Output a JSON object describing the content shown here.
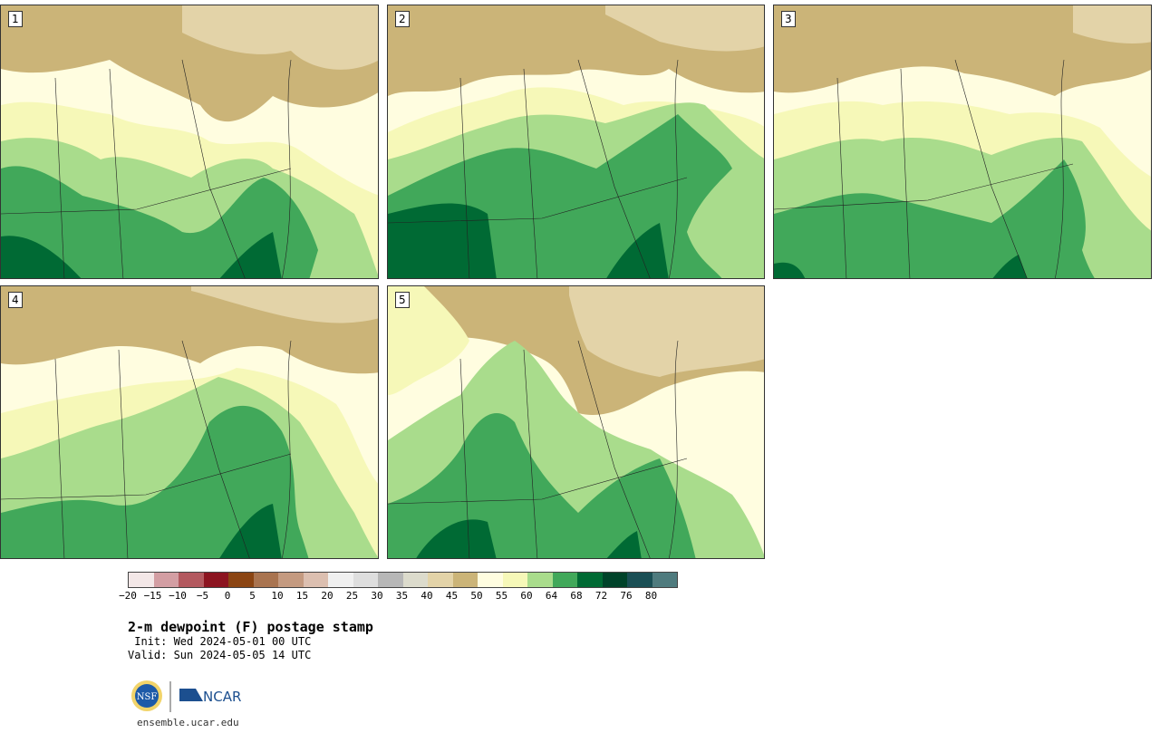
{
  "panels": [
    {
      "label": "1"
    },
    {
      "label": "2"
    },
    {
      "label": "3"
    },
    {
      "label": "4"
    },
    {
      "label": "5"
    }
  ],
  "colorbar": {
    "colors": [
      "#f3e7e7",
      "#d39ea3",
      "#b3595f",
      "#8c1420",
      "#8b4513",
      "#a97450",
      "#c49a80",
      "#dcbfb0",
      "#f0f0f0",
      "#dedede",
      "#b7b7b7",
      "#dcdbcc",
      "#e3d3a8",
      "#cbb478",
      "#fffde0",
      "#f6f8b8",
      "#a9dc8c",
      "#41a85a",
      "#006a34",
      "#00432a",
      "#1a4f55",
      "#4f7b7e"
    ],
    "tick_labels": [
      "−20",
      "−15",
      "−10",
      "−5",
      "0",
      "5",
      "10",
      "15",
      "20",
      "25",
      "30",
      "35",
      "40",
      "45",
      "50",
      "55",
      "60",
      "64",
      "68",
      "72",
      "76",
      "80"
    ]
  },
  "map_colors": {
    "dry": "#cbb478",
    "dry_light": "#e3d3a8",
    "pale": "#fffde0",
    "light": "#f6f8b8",
    "mid": "#a9dc8c",
    "green": "#41a85a",
    "dark": "#006a34"
  },
  "title": "2-m dewpoint (F) postage stamp",
  "init": " Init: Wed 2024-05-01 00 UTC",
  "valid": "Valid: Sun 2024-05-05 14 UTC",
  "logos": {
    "left": "NSF",
    "right": "NCAR"
  },
  "site": "ensemble.ucar.edu"
}
